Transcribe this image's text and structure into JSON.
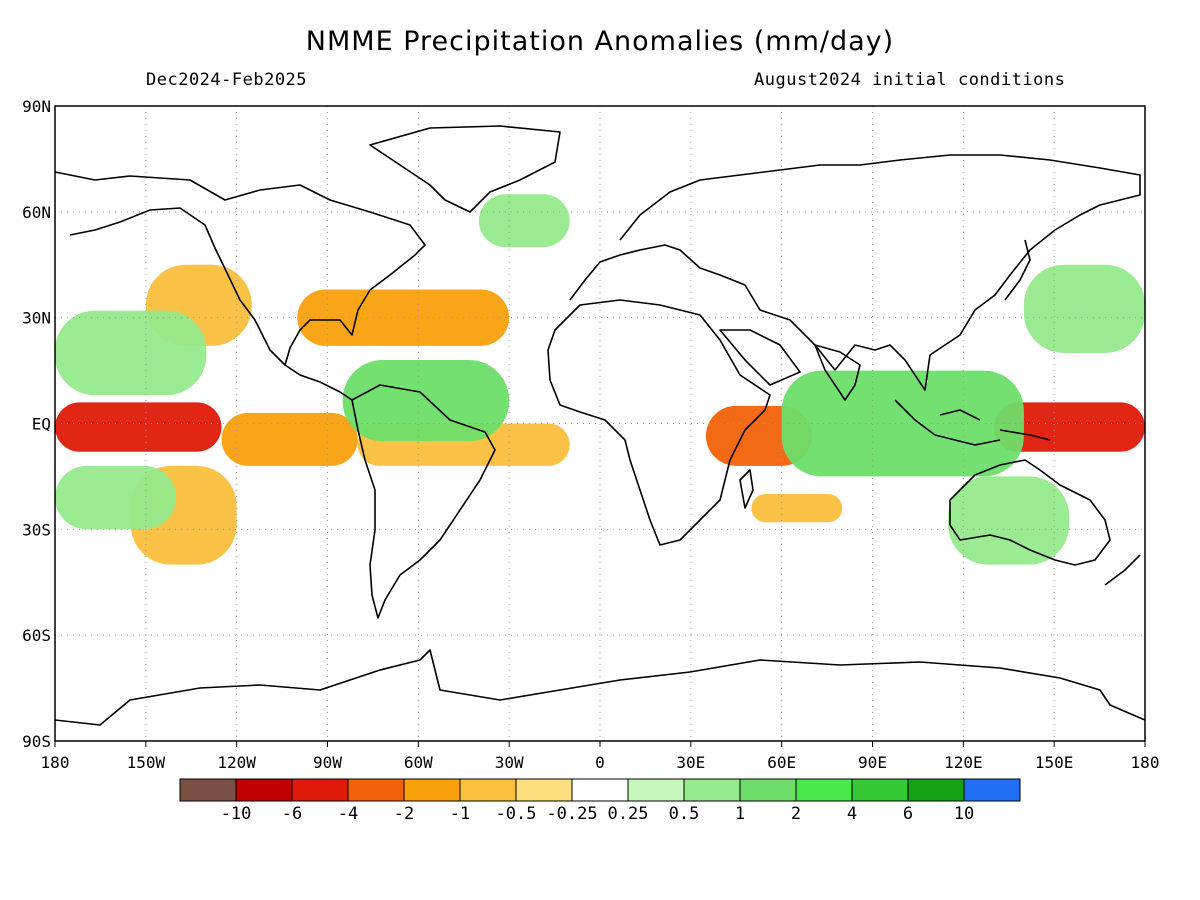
{
  "title": "NMME Precipitation Anomalies (mm/day)",
  "subtitle_left": "Dec2024-Feb2025",
  "subtitle_right": "August2024 initial conditions",
  "axes": {
    "x_ticks": [
      "180",
      "150W",
      "120W",
      "90W",
      "60W",
      "30W",
      "0",
      "30E",
      "60E",
      "90E",
      "120E",
      "150E",
      "180"
    ],
    "y_ticks": [
      "90N",
      "60N",
      "30N",
      "EQ",
      "30S",
      "60S",
      "90S"
    ],
    "lon_range": [
      -180,
      180
    ],
    "lat_range": [
      -90,
      90
    ],
    "grid": "dotted"
  },
  "colorbar": {
    "colors": [
      "#7a4f44",
      "#c00000",
      "#e01a0a",
      "#f2620a",
      "#f9a00d",
      "#fbbf3e",
      "#fde07d",
      "#ffffff",
      "#c8f7bd",
      "#96ea8c",
      "#6ede6a",
      "#4ae84a",
      "#35c935",
      "#12a212",
      "#1f6ff0"
    ],
    "labels": [
      "-10",
      "-6",
      "-4",
      "-2",
      "-1",
      "-0.5",
      "-0.25",
      "0.25",
      "0.5",
      "1",
      "2",
      "4",
      "6",
      "10"
    ]
  },
  "anomaly_regions": [
    {
      "name": "central-pacific-dry",
      "lon": [
        -180,
        -125
      ],
      "lat": [
        -8,
        6
      ],
      "level": "-4"
    },
    {
      "name": "east-pacific-dry",
      "lon": [
        -125,
        -80
      ],
      "lat": [
        -12,
        3
      ],
      "level": "-1"
    },
    {
      "name": "se-pacific-dry",
      "lon": [
        -155,
        -120
      ],
      "lat": [
        -40,
        -12
      ],
      "level": "-0.5"
    },
    {
      "name": "north-pacific-dry",
      "lon": [
        -150,
        -115
      ],
      "lat": [
        22,
        45
      ],
      "level": "-0.5"
    },
    {
      "name": "gulf-atlantic-dry",
      "lon": [
        -100,
        -30
      ],
      "lat": [
        22,
        38
      ],
      "level": "-1"
    },
    {
      "name": "equatorial-atlantic-dry",
      "lon": [
        -80,
        -10
      ],
      "lat": [
        -12,
        0
      ],
      "level": "-0.5"
    },
    {
      "name": "east-africa-indian-dry",
      "lon": [
        35,
        70
      ],
      "lat": [
        -12,
        5
      ],
      "level": "-2"
    },
    {
      "name": "south-indian-dry",
      "lon": [
        50,
        80
      ],
      "lat": [
        -28,
        -20
      ],
      "level": "-0.5"
    },
    {
      "name": "west-pacific-dry",
      "lon": [
        130,
        180
      ],
      "lat": [
        -8,
        6
      ],
      "level": "-4"
    },
    {
      "name": "subtropical-pacific-wet-n",
      "lon": [
        -180,
        -130
      ],
      "lat": [
        8,
        32
      ],
      "level": "0.5"
    },
    {
      "name": "subtropical-pacific-wet-s",
      "lon": [
        -180,
        -140
      ],
      "lat": [
        -30,
        -12
      ],
      "level": "0.5"
    },
    {
      "name": "caribbean-amazon-wet",
      "lon": [
        -85,
        -30
      ],
      "lat": [
        -5,
        18
      ],
      "level": "1"
    },
    {
      "name": "north-atlantic-wet",
      "lon": [
        -40,
        -10
      ],
      "lat": [
        50,
        65
      ],
      "level": "0.5"
    },
    {
      "name": "maritime-continent-wet",
      "lon": [
        60,
        140
      ],
      "lat": [
        -15,
        15
      ],
      "level": "1"
    },
    {
      "name": "australia-wet",
      "lon": [
        115,
        155
      ],
      "lat": [
        -40,
        -15
      ],
      "level": "0.5"
    },
    {
      "name": "nw-pacific-wet",
      "lon": [
        140,
        180
      ],
      "lat": [
        20,
        45
      ],
      "level": "0.5"
    }
  ]
}
